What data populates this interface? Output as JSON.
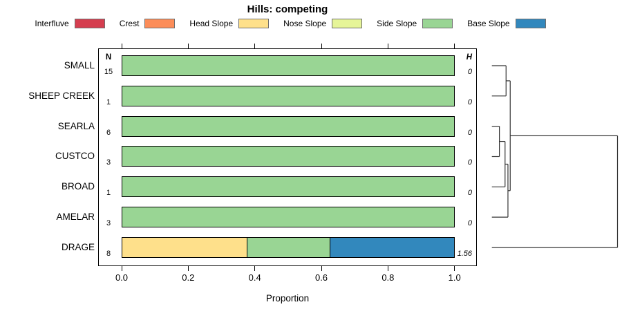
{
  "chart_data": {
    "type": "bar",
    "orientation": "horizontal_stacked",
    "title": "Hills: competing",
    "xlabel": "Proportion",
    "xlim": [
      0,
      1
    ],
    "xticks": [
      {
        "value": 0.0,
        "label": "0.0"
      },
      {
        "value": 0.2,
        "label": "0.2"
      },
      {
        "value": 0.4,
        "label": "0.4"
      },
      {
        "value": 0.6,
        "label": "0.6"
      },
      {
        "value": 0.8,
        "label": "0.8"
      },
      {
        "value": 1.0,
        "label": "1.0"
      }
    ],
    "grid": false,
    "legend_position": "top",
    "legend": [
      {
        "label": "Interfluve",
        "color": "#D53E4F"
      },
      {
        "label": "Crest",
        "color": "#FC8D59"
      },
      {
        "label": "Head Slope",
        "color": "#FEE08B"
      },
      {
        "label": "Nose Slope",
        "color": "#E6F598"
      },
      {
        "label": "Side Slope",
        "color": "#99D594"
      },
      {
        "label": "Base Slope",
        "color": "#3288BD"
      }
    ],
    "n_header": "N",
    "h_header": "H",
    "rows": [
      {
        "label": "SMALL",
        "n": "15",
        "h": "0",
        "segments": [
          {
            "category": "Side Slope",
            "proportion": 1.0
          }
        ]
      },
      {
        "label": "SHEEP CREEK",
        "n": "1",
        "h": "0",
        "segments": [
          {
            "category": "Side Slope",
            "proportion": 1.0
          }
        ]
      },
      {
        "label": "SEARLA",
        "n": "6",
        "h": "0",
        "segments": [
          {
            "category": "Side Slope",
            "proportion": 1.0
          }
        ]
      },
      {
        "label": "CUSTCO",
        "n": "3",
        "h": "0",
        "segments": [
          {
            "category": "Side Slope",
            "proportion": 1.0
          }
        ]
      },
      {
        "label": "BROAD",
        "n": "1",
        "h": "0",
        "segments": [
          {
            "category": "Side Slope",
            "proportion": 1.0
          }
        ]
      },
      {
        "label": "AMELAR",
        "n": "3",
        "h": "0",
        "segments": [
          {
            "category": "Side Slope",
            "proportion": 1.0
          }
        ]
      },
      {
        "label": "DRAGE",
        "n": "8",
        "h": "1.56",
        "segments": [
          {
            "category": "Head Slope",
            "proportion": 0.375
          },
          {
            "category": "Side Slope",
            "proportion": 0.25
          },
          {
            "category": "Base Slope",
            "proportion": 0.375
          }
        ]
      }
    ],
    "dendrogram": {
      "leaf_order": [
        "SMALL",
        "SHEEP CREEK",
        "SEARLA",
        "CUSTCO",
        "BROAD",
        "AMELAR",
        "DRAGE"
      ],
      "merges": [
        {
          "id": "m1",
          "a": "SMALL",
          "b": "SHEEP CREEK",
          "height": 0.113
        },
        {
          "id": "m2",
          "a": "SEARLA",
          "b": "CUSTCO",
          "height": 0.06
        },
        {
          "id": "m3",
          "a": "m2",
          "b": "BROAD",
          "height": 0.105
        },
        {
          "id": "m4",
          "a": "m3",
          "b": "AMELAR",
          "height": 0.128
        },
        {
          "id": "m5",
          "a": "m1",
          "b": "m4",
          "height": 0.146
        },
        {
          "id": "root",
          "a": "m5",
          "b": "DRAGE",
          "height": 1.0
        }
      ]
    }
  }
}
